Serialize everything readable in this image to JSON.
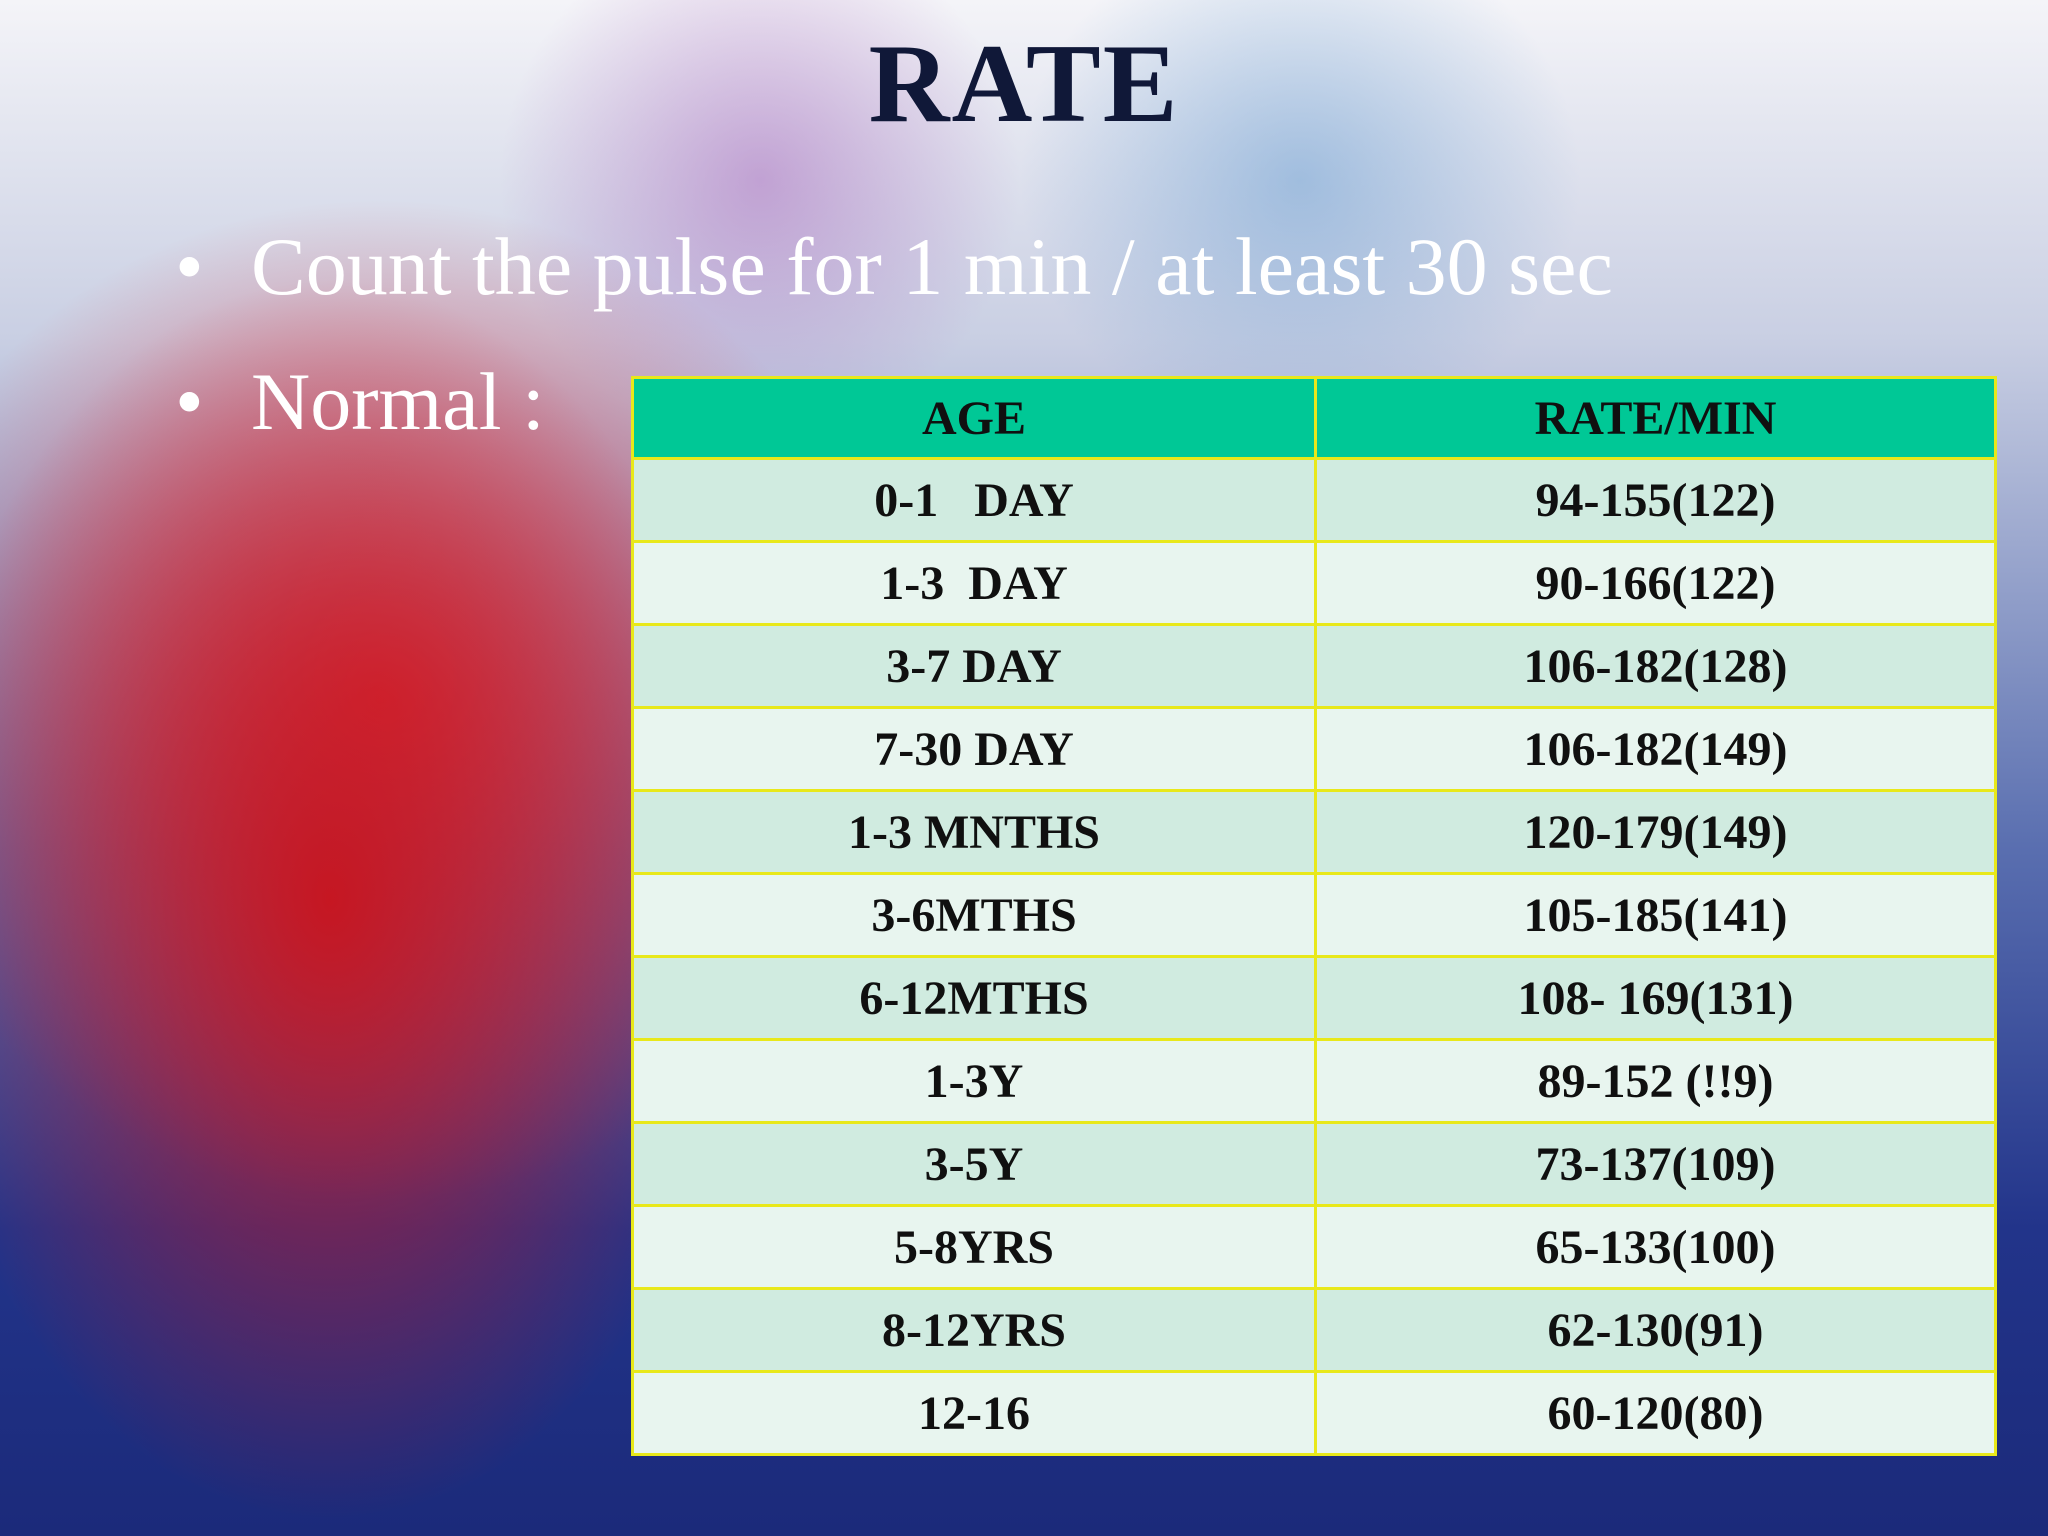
{
  "title": "RATE",
  "bullets": [
    "Count the pulse for 1 min / at least 30 sec",
    "Normal :"
  ],
  "table": {
    "header": [
      "AGE",
      "RATE/MIN"
    ],
    "rows": [
      [
        "0-1   DAY",
        "94-155(122)"
      ],
      [
        "1-3  DAY",
        "90-166(122)"
      ],
      [
        "3-7 DAY",
        "106-182(128)"
      ],
      [
        "7-30 DAY",
        "106-182(149)"
      ],
      [
        "1-3 MNTHS",
        "120-179(149)"
      ],
      [
        "3-6MTHS",
        "105-185(141)"
      ],
      [
        "6-12MTHS",
        "108- 169(131)"
      ],
      [
        "1-3Y",
        "89-152 (!!9)"
      ],
      [
        "3-5Y",
        "73-137(109)"
      ],
      [
        "5-8YRS",
        "65-133(100)"
      ],
      [
        "8-12YRS",
        "62-130(91)"
      ],
      [
        "12-16",
        "60-120(80)"
      ]
    ]
  }
}
